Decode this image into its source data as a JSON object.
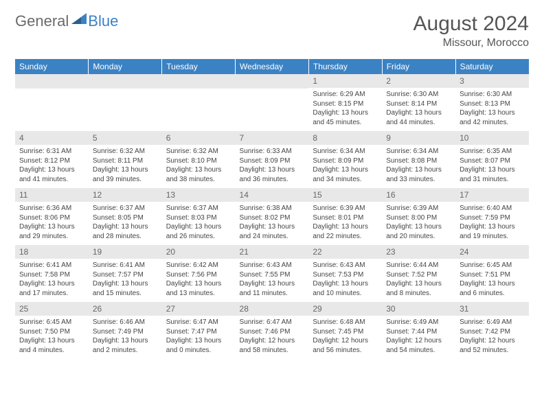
{
  "logo": {
    "text_general": "General",
    "text_blue": "Blue",
    "accent_color": "#3b82c4",
    "grey_color": "#6a6a6a"
  },
  "header": {
    "title": "August 2024",
    "location": "Missour, Morocco"
  },
  "theme": {
    "header_bg": "#3b82c4",
    "header_fg": "#ffffff",
    "daynum_bg": "#e8e8e8",
    "text_color": "#444444",
    "title_fontsize": 30,
    "location_fontsize": 16,
    "dayheader_fontsize": 12,
    "body_fontsize": 10
  },
  "day_headers": [
    "Sunday",
    "Monday",
    "Tuesday",
    "Wednesday",
    "Thursday",
    "Friday",
    "Saturday"
  ],
  "weeks": [
    [
      null,
      null,
      null,
      null,
      {
        "n": "1",
        "sunrise": "Sunrise: 6:29 AM",
        "sunset": "Sunset: 8:15 PM",
        "daylight": "Daylight: 13 hours and 45 minutes."
      },
      {
        "n": "2",
        "sunrise": "Sunrise: 6:30 AM",
        "sunset": "Sunset: 8:14 PM",
        "daylight": "Daylight: 13 hours and 44 minutes."
      },
      {
        "n": "3",
        "sunrise": "Sunrise: 6:30 AM",
        "sunset": "Sunset: 8:13 PM",
        "daylight": "Daylight: 13 hours and 42 minutes."
      }
    ],
    [
      {
        "n": "4",
        "sunrise": "Sunrise: 6:31 AM",
        "sunset": "Sunset: 8:12 PM",
        "daylight": "Daylight: 13 hours and 41 minutes."
      },
      {
        "n": "5",
        "sunrise": "Sunrise: 6:32 AM",
        "sunset": "Sunset: 8:11 PM",
        "daylight": "Daylight: 13 hours and 39 minutes."
      },
      {
        "n": "6",
        "sunrise": "Sunrise: 6:32 AM",
        "sunset": "Sunset: 8:10 PM",
        "daylight": "Daylight: 13 hours and 38 minutes."
      },
      {
        "n": "7",
        "sunrise": "Sunrise: 6:33 AM",
        "sunset": "Sunset: 8:09 PM",
        "daylight": "Daylight: 13 hours and 36 minutes."
      },
      {
        "n": "8",
        "sunrise": "Sunrise: 6:34 AM",
        "sunset": "Sunset: 8:09 PM",
        "daylight": "Daylight: 13 hours and 34 minutes."
      },
      {
        "n": "9",
        "sunrise": "Sunrise: 6:34 AM",
        "sunset": "Sunset: 8:08 PM",
        "daylight": "Daylight: 13 hours and 33 minutes."
      },
      {
        "n": "10",
        "sunrise": "Sunrise: 6:35 AM",
        "sunset": "Sunset: 8:07 PM",
        "daylight": "Daylight: 13 hours and 31 minutes."
      }
    ],
    [
      {
        "n": "11",
        "sunrise": "Sunrise: 6:36 AM",
        "sunset": "Sunset: 8:06 PM",
        "daylight": "Daylight: 13 hours and 29 minutes."
      },
      {
        "n": "12",
        "sunrise": "Sunrise: 6:37 AM",
        "sunset": "Sunset: 8:05 PM",
        "daylight": "Daylight: 13 hours and 28 minutes."
      },
      {
        "n": "13",
        "sunrise": "Sunrise: 6:37 AM",
        "sunset": "Sunset: 8:03 PM",
        "daylight": "Daylight: 13 hours and 26 minutes."
      },
      {
        "n": "14",
        "sunrise": "Sunrise: 6:38 AM",
        "sunset": "Sunset: 8:02 PM",
        "daylight": "Daylight: 13 hours and 24 minutes."
      },
      {
        "n": "15",
        "sunrise": "Sunrise: 6:39 AM",
        "sunset": "Sunset: 8:01 PM",
        "daylight": "Daylight: 13 hours and 22 minutes."
      },
      {
        "n": "16",
        "sunrise": "Sunrise: 6:39 AM",
        "sunset": "Sunset: 8:00 PM",
        "daylight": "Daylight: 13 hours and 20 minutes."
      },
      {
        "n": "17",
        "sunrise": "Sunrise: 6:40 AM",
        "sunset": "Sunset: 7:59 PM",
        "daylight": "Daylight: 13 hours and 19 minutes."
      }
    ],
    [
      {
        "n": "18",
        "sunrise": "Sunrise: 6:41 AM",
        "sunset": "Sunset: 7:58 PM",
        "daylight": "Daylight: 13 hours and 17 minutes."
      },
      {
        "n": "19",
        "sunrise": "Sunrise: 6:41 AM",
        "sunset": "Sunset: 7:57 PM",
        "daylight": "Daylight: 13 hours and 15 minutes."
      },
      {
        "n": "20",
        "sunrise": "Sunrise: 6:42 AM",
        "sunset": "Sunset: 7:56 PM",
        "daylight": "Daylight: 13 hours and 13 minutes."
      },
      {
        "n": "21",
        "sunrise": "Sunrise: 6:43 AM",
        "sunset": "Sunset: 7:55 PM",
        "daylight": "Daylight: 13 hours and 11 minutes."
      },
      {
        "n": "22",
        "sunrise": "Sunrise: 6:43 AM",
        "sunset": "Sunset: 7:53 PM",
        "daylight": "Daylight: 13 hours and 10 minutes."
      },
      {
        "n": "23",
        "sunrise": "Sunrise: 6:44 AM",
        "sunset": "Sunset: 7:52 PM",
        "daylight": "Daylight: 13 hours and 8 minutes."
      },
      {
        "n": "24",
        "sunrise": "Sunrise: 6:45 AM",
        "sunset": "Sunset: 7:51 PM",
        "daylight": "Daylight: 13 hours and 6 minutes."
      }
    ],
    [
      {
        "n": "25",
        "sunrise": "Sunrise: 6:45 AM",
        "sunset": "Sunset: 7:50 PM",
        "daylight": "Daylight: 13 hours and 4 minutes."
      },
      {
        "n": "26",
        "sunrise": "Sunrise: 6:46 AM",
        "sunset": "Sunset: 7:49 PM",
        "daylight": "Daylight: 13 hours and 2 minutes."
      },
      {
        "n": "27",
        "sunrise": "Sunrise: 6:47 AM",
        "sunset": "Sunset: 7:47 PM",
        "daylight": "Daylight: 13 hours and 0 minutes."
      },
      {
        "n": "28",
        "sunrise": "Sunrise: 6:47 AM",
        "sunset": "Sunset: 7:46 PM",
        "daylight": "Daylight: 12 hours and 58 minutes."
      },
      {
        "n": "29",
        "sunrise": "Sunrise: 6:48 AM",
        "sunset": "Sunset: 7:45 PM",
        "daylight": "Daylight: 12 hours and 56 minutes."
      },
      {
        "n": "30",
        "sunrise": "Sunrise: 6:49 AM",
        "sunset": "Sunset: 7:44 PM",
        "daylight": "Daylight: 12 hours and 54 minutes."
      },
      {
        "n": "31",
        "sunrise": "Sunrise: 6:49 AM",
        "sunset": "Sunset: 7:42 PM",
        "daylight": "Daylight: 12 hours and 52 minutes."
      }
    ]
  ]
}
